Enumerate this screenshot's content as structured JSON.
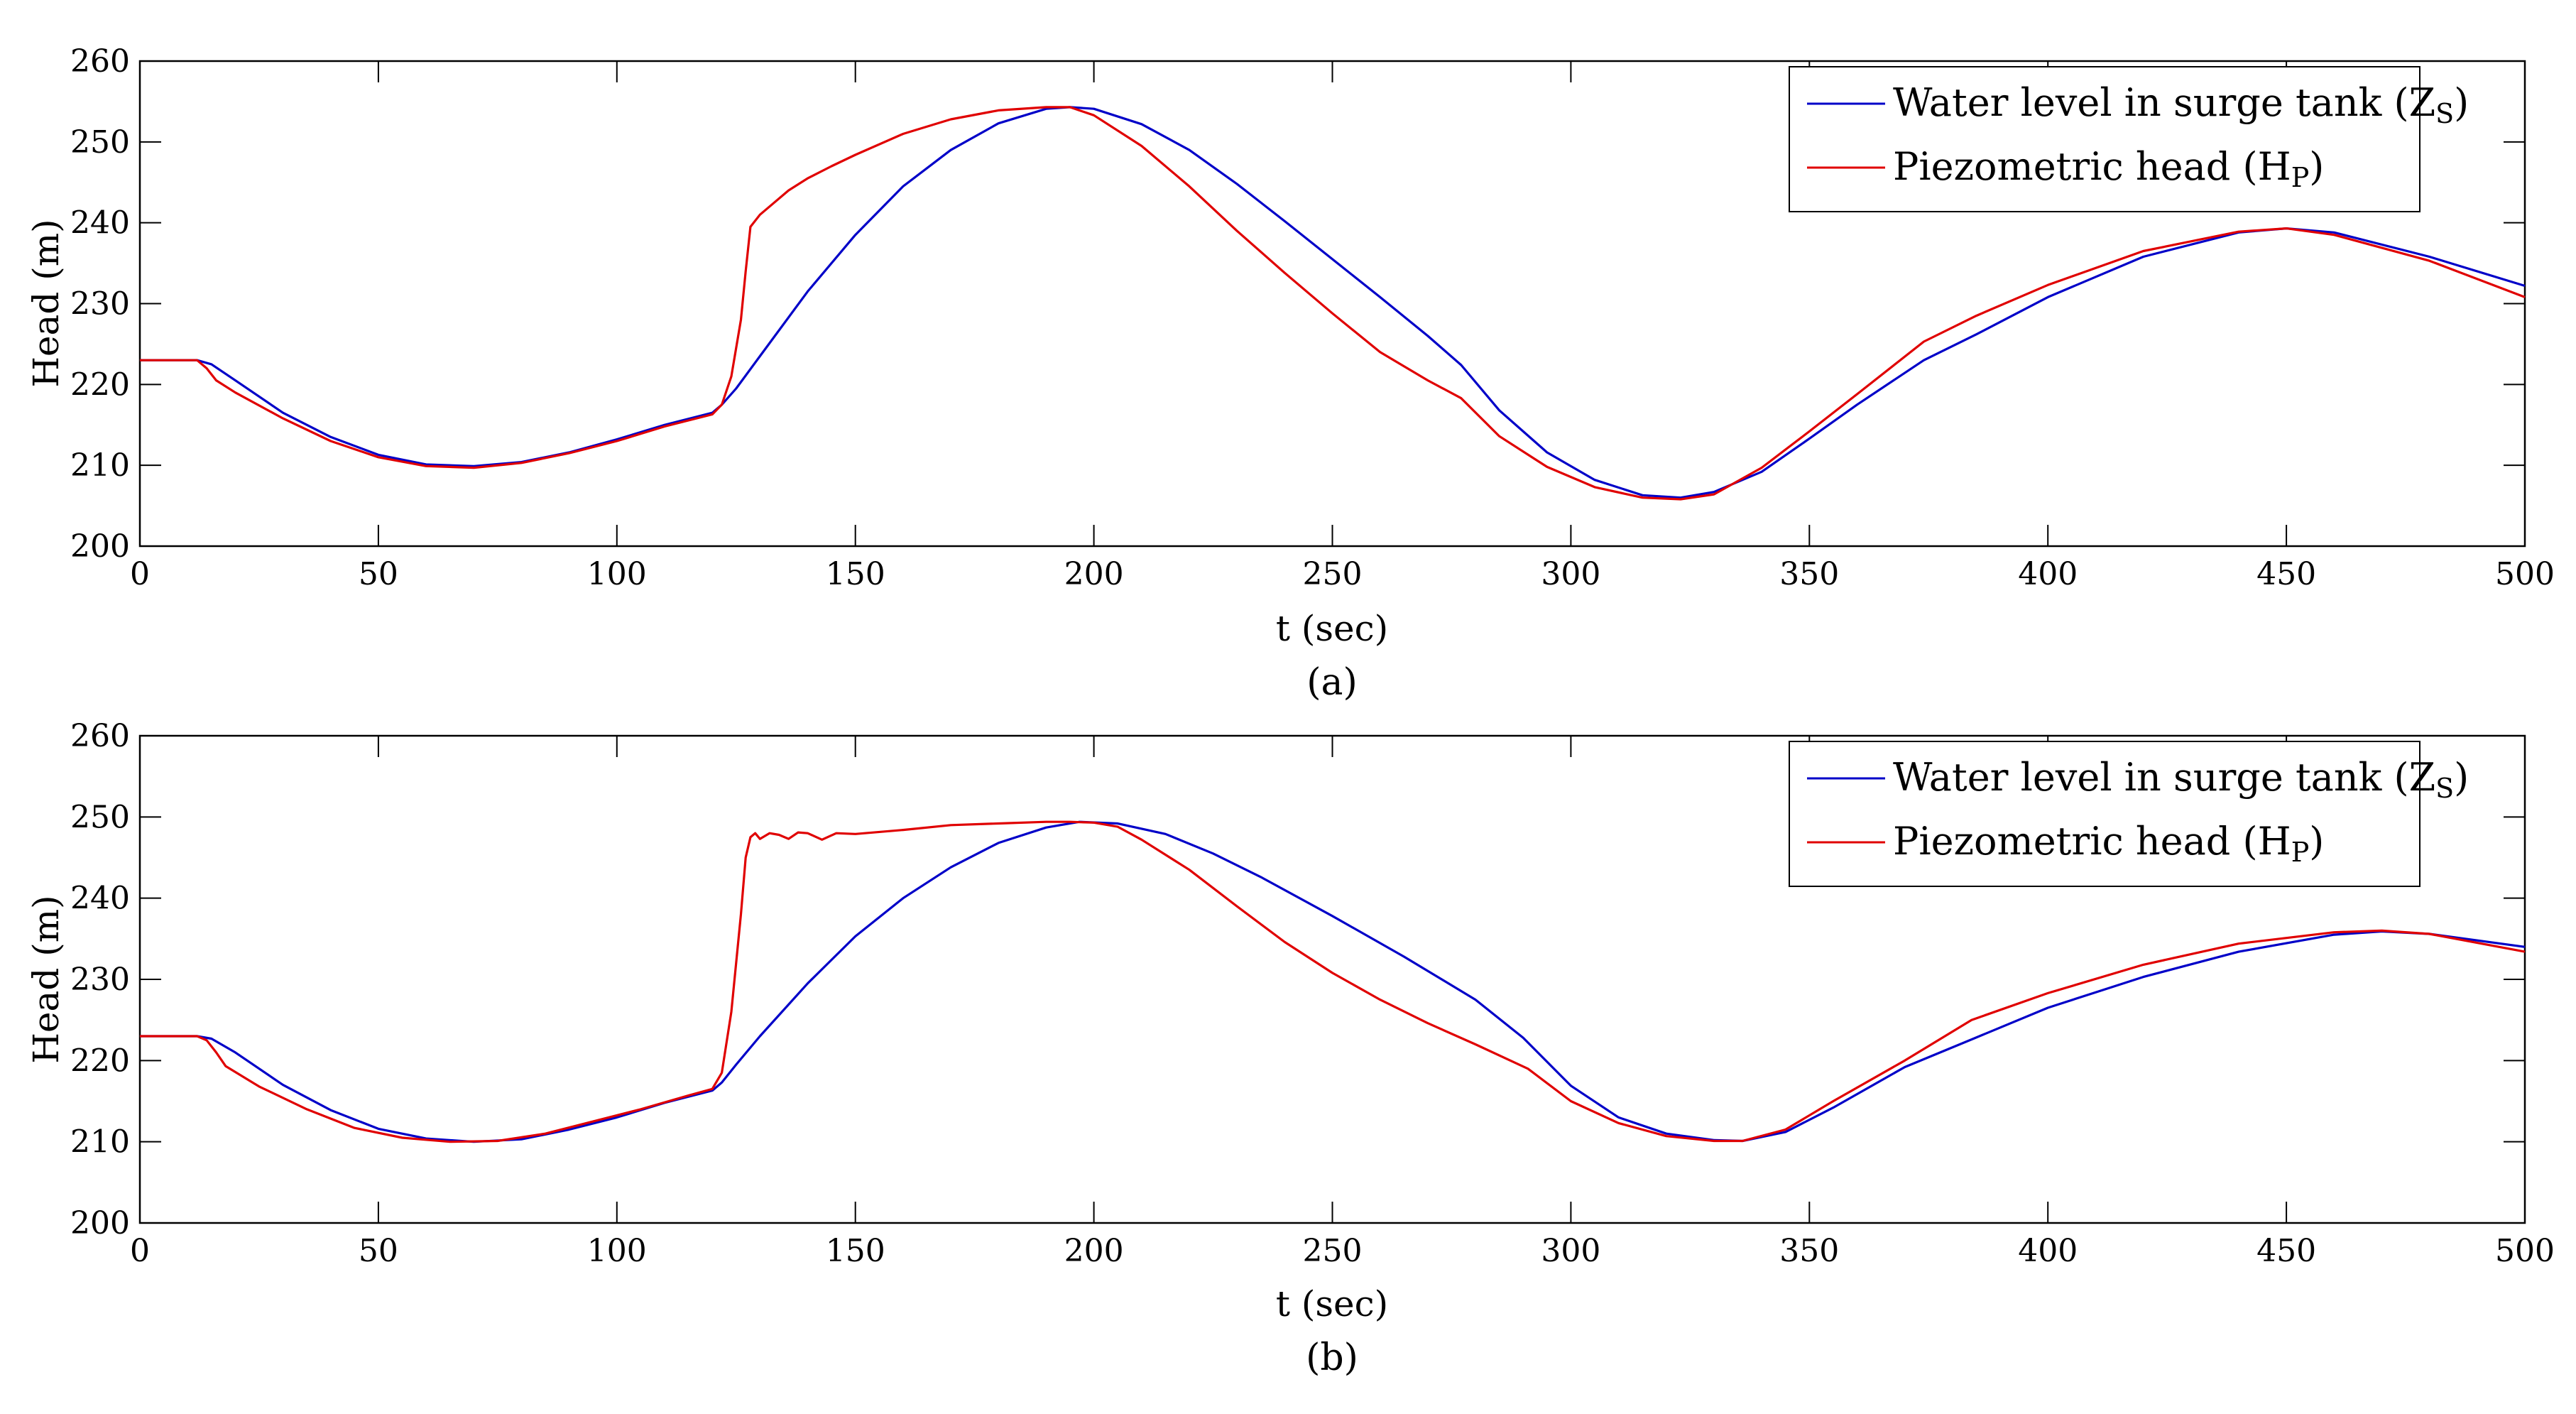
{
  "chart_data": [
    {
      "type": "line",
      "panel_label": "(a)",
      "xlabel": "t (sec)",
      "ylabel": "Head (m)",
      "xlim": [
        0,
        500
      ],
      "ylim": [
        200,
        260
      ],
      "xticks": [
        0,
        50,
        100,
        150,
        200,
        250,
        300,
        350,
        400,
        450,
        500
      ],
      "yticks": [
        200,
        210,
        220,
        230,
        240,
        250,
        260
      ],
      "grid": false,
      "legend_position": "top-right",
      "series": [
        {
          "name": "Water level in surge tank (ZS)",
          "label_main": "Water level in surge tank (Z",
          "label_sub": "S",
          "label_close": ")",
          "color": "#0000c8",
          "x": [
            0,
            12,
            15,
            20,
            30,
            40,
            50,
            60,
            70,
            80,
            90,
            100,
            110,
            120,
            122,
            125,
            130,
            140,
            150,
            160,
            170,
            180,
            190,
            195,
            200,
            210,
            220,
            230,
            240,
            250,
            260,
            270,
            277,
            285,
            295,
            305,
            315,
            323,
            330,
            340,
            350,
            360,
            374,
            385,
            400,
            420,
            440,
            450,
            460,
            480,
            500
          ],
          "y": [
            223,
            223,
            222.5,
            220.5,
            216.5,
            213.5,
            211.3,
            210.1,
            209.9,
            210.4,
            211.6,
            213.2,
            215,
            216.5,
            217.5,
            219.5,
            223.5,
            231.5,
            238.5,
            244.5,
            249,
            252.3,
            254.1,
            254.3,
            254.1,
            252.2,
            249,
            244.8,
            240.2,
            235.5,
            230.8,
            226,
            222.4,
            216.8,
            211.6,
            208.2,
            206.3,
            206,
            206.7,
            209.2,
            213.3,
            217.5,
            223,
            226.2,
            230.8,
            235.8,
            238.8,
            239.3,
            238.8,
            235.8,
            232.2
          ]
        },
        {
          "name": "Piezometric head (HP)",
          "label_main": "Piezometric head (H",
          "label_sub": "P",
          "label_close": ")",
          "color": "#e00000",
          "x": [
            0,
            12,
            14,
            16,
            20,
            30,
            40,
            50,
            60,
            70,
            80,
            90,
            100,
            110,
            120,
            122,
            124,
            126,
            127,
            128,
            130,
            133,
            136,
            140,
            145,
            150,
            160,
            170,
            180,
            190,
            195,
            200,
            210,
            220,
            230,
            240,
            250,
            260,
            270,
            277,
            285,
            295,
            305,
            315,
            323,
            330,
            340,
            350,
            360,
            374,
            385,
            400,
            420,
            440,
            450,
            460,
            480,
            500
          ],
          "y": [
            223,
            223,
            222,
            220.5,
            219,
            215.8,
            213,
            211,
            209.9,
            209.7,
            210.3,
            211.5,
            213,
            214.8,
            216.3,
            217.5,
            221,
            228,
            234,
            239.5,
            241,
            242.5,
            244,
            245.5,
            247,
            248.4,
            251,
            252.8,
            253.9,
            254.3,
            254.3,
            253.3,
            249.5,
            244.5,
            239,
            233.8,
            228.8,
            224,
            220.5,
            218.3,
            213.6,
            209.8,
            207.3,
            206,
            205.8,
            206.4,
            209.7,
            214.2,
            218.8,
            225.3,
            228.5,
            232.3,
            236.5,
            238.9,
            239.3,
            238.5,
            235.3,
            230.8
          ]
        }
      ]
    },
    {
      "type": "line",
      "panel_label": "(b)",
      "xlabel": "t (sec)",
      "ylabel": "Head (m)",
      "xlim": [
        0,
        500
      ],
      "ylim": [
        200,
        260
      ],
      "xticks": [
        0,
        50,
        100,
        150,
        200,
        250,
        300,
        350,
        400,
        450,
        500
      ],
      "yticks": [
        200,
        210,
        220,
        230,
        240,
        250,
        260
      ],
      "grid": false,
      "legend_position": "top-right",
      "series": [
        {
          "name": "Water level in surge tank (ZS)",
          "label_main": "Water level in surge tank (Z",
          "label_sub": "S",
          "label_close": ")",
          "color": "#0000c8",
          "x": [
            0,
            12,
            15,
            20,
            30,
            40,
            50,
            60,
            70,
            80,
            90,
            100,
            110,
            120,
            122,
            125,
            130,
            140,
            150,
            160,
            170,
            180,
            190,
            197,
            205,
            215,
            225,
            235,
            250,
            265,
            280,
            290,
            300,
            310,
            320,
            330,
            336,
            345,
            355,
            370,
            384,
            400,
            420,
            440,
            460,
            470,
            480,
            500
          ],
          "y": [
            223,
            223,
            222.7,
            221,
            217,
            213.9,
            211.6,
            210.4,
            210,
            210.3,
            211.5,
            213,
            214.8,
            216.3,
            217.3,
            219.5,
            223,
            229.5,
            235.3,
            240,
            243.8,
            246.8,
            248.7,
            249.4,
            249.2,
            247.9,
            245.5,
            242.6,
            237.8,
            232.8,
            227.5,
            222.8,
            216.9,
            213,
            211,
            210.2,
            210.1,
            211.2,
            214.2,
            219.2,
            222.6,
            226.5,
            230.3,
            233.4,
            235.5,
            235.9,
            235.6,
            234
          ]
        },
        {
          "name": "Piezometric head (HP)",
          "label_main": "Piezometric head (H",
          "label_sub": "P",
          "label_close": ")",
          "color": "#e00000",
          "x": [
            0,
            12,
            14,
            16,
            18,
            25,
            35,
            45,
            55,
            65,
            75,
            85,
            95,
            105,
            115,
            120,
            122,
            124,
            126,
            127,
            128,
            129,
            130,
            132,
            134,
            136,
            138,
            140,
            143,
            146,
            150,
            160,
            170,
            180,
            190,
            195,
            200,
            205,
            210,
            220,
            230,
            240,
            250,
            260,
            270,
            280,
            291,
            300,
            310,
            320,
            330,
            336,
            345,
            355,
            370,
            384,
            400,
            420,
            440,
            460,
            470,
            480,
            500
          ],
          "y": [
            223,
            223,
            222.5,
            221,
            219.3,
            216.8,
            214,
            211.7,
            210.5,
            210,
            210.1,
            211,
            212.5,
            214,
            215.7,
            216.5,
            218.5,
            226,
            238,
            245,
            247.5,
            248,
            247.3,
            248,
            247.8,
            247.3,
            248.1,
            248,
            247.2,
            248,
            247.9,
            248.4,
            249,
            249.2,
            249.4,
            249.4,
            249.3,
            248.8,
            247.2,
            243.5,
            239,
            234.6,
            230.8,
            227.5,
            224.6,
            222,
            219,
            215,
            212.3,
            210.7,
            210.1,
            210.1,
            211.5,
            215,
            220,
            225,
            228.3,
            231.8,
            234.4,
            235.8,
            236,
            235.6,
            233.4
          ]
        }
      ]
    }
  ]
}
